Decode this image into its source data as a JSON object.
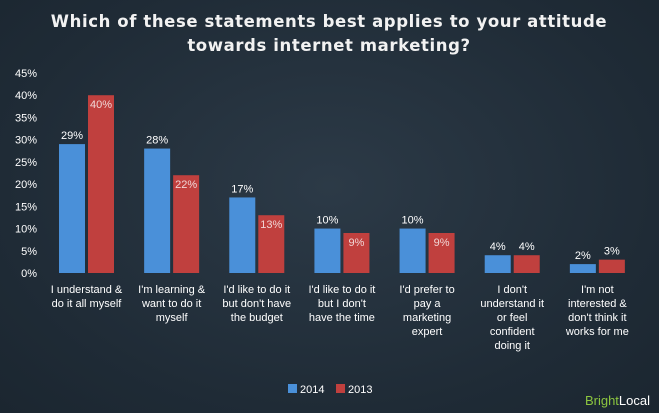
{
  "chart_data": {
    "type": "bar",
    "title_lines": [
      "Which of these statements best applies to your attitude",
      "towards internet marketing?"
    ],
    "categories": [
      [
        "I understand &",
        "do it all myself"
      ],
      [
        "I'm learning &",
        "want to do it",
        "myself"
      ],
      [
        "I'd like to do it",
        "but don't have",
        "the budget"
      ],
      [
        "I'd like to do it",
        "but I don't",
        "have the time"
      ],
      [
        "I'd prefer to",
        "pay a",
        "marketing",
        "expert"
      ],
      [
        "I don't",
        "understand it",
        "or feel",
        "confident",
        "doing it"
      ],
      [
        "I'm not",
        "interested &",
        "don't think it",
        "works for me"
      ]
    ],
    "series": [
      {
        "name": "2014",
        "values": [
          29,
          28,
          17,
          10,
          10,
          4,
          2
        ],
        "labels": [
          "29%",
          "28%",
          "17%",
          "10%",
          "10%",
          "4%",
          "2%"
        ]
      },
      {
        "name": "2013",
        "values": [
          40,
          22,
          13,
          9,
          9,
          4,
          3
        ],
        "labels": [
          "40%",
          "22%",
          "13%",
          "9%",
          "9%",
          "4%",
          "3%"
        ]
      }
    ],
    "y_ticks": [
      "0%",
      "5%",
      "10%",
      "15%",
      "20%",
      "25%",
      "30%",
      "35%",
      "40%",
      "45%"
    ],
    "ylim": [
      0,
      45
    ],
    "legend_position": "bottom-center",
    "colors": {
      "2014": "#4a90d9",
      "2013": "#c0403e"
    }
  },
  "branding": {
    "part1": "Bright",
    "part2": "Local"
  }
}
